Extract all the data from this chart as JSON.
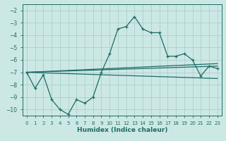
{
  "xlabel": "Humidex (Indice chaleur)",
  "background_color": "#cce8e5",
  "grid_color": "#aad0cc",
  "line_color": "#1e6b65",
  "xlim": [
    -0.5,
    23.5
  ],
  "ylim": [
    -10.5,
    -1.5
  ],
  "yticks": [
    -10,
    -9,
    -8,
    -7,
    -6,
    -5,
    -4,
    -3,
    -2
  ],
  "xticks": [
    0,
    1,
    2,
    3,
    4,
    5,
    6,
    7,
    8,
    9,
    10,
    11,
    12,
    13,
    14,
    15,
    16,
    17,
    18,
    19,
    20,
    21,
    22,
    23
  ],
  "line1_x": [
    0,
    1,
    2,
    3,
    4,
    5,
    6,
    7,
    8,
    9,
    10,
    11,
    12,
    13,
    14,
    15,
    16,
    17,
    18,
    19,
    20,
    21,
    22,
    23
  ],
  "line1_y": [
    -7.0,
    -8.3,
    -7.2,
    -9.2,
    -10.0,
    -10.4,
    -9.2,
    -9.5,
    -9.0,
    -7.0,
    -5.5,
    -3.5,
    -3.3,
    -2.5,
    -3.5,
    -3.8,
    -3.8,
    -5.7,
    -5.7,
    -5.5,
    -6.0,
    -7.3,
    -6.5,
    -6.7
  ],
  "line2_x": [
    0,
    23
  ],
  "line2_y": [
    -7.0,
    -6.5
  ],
  "line3_x": [
    0,
    23
  ],
  "line3_y": [
    -7.0,
    -7.5
  ]
}
